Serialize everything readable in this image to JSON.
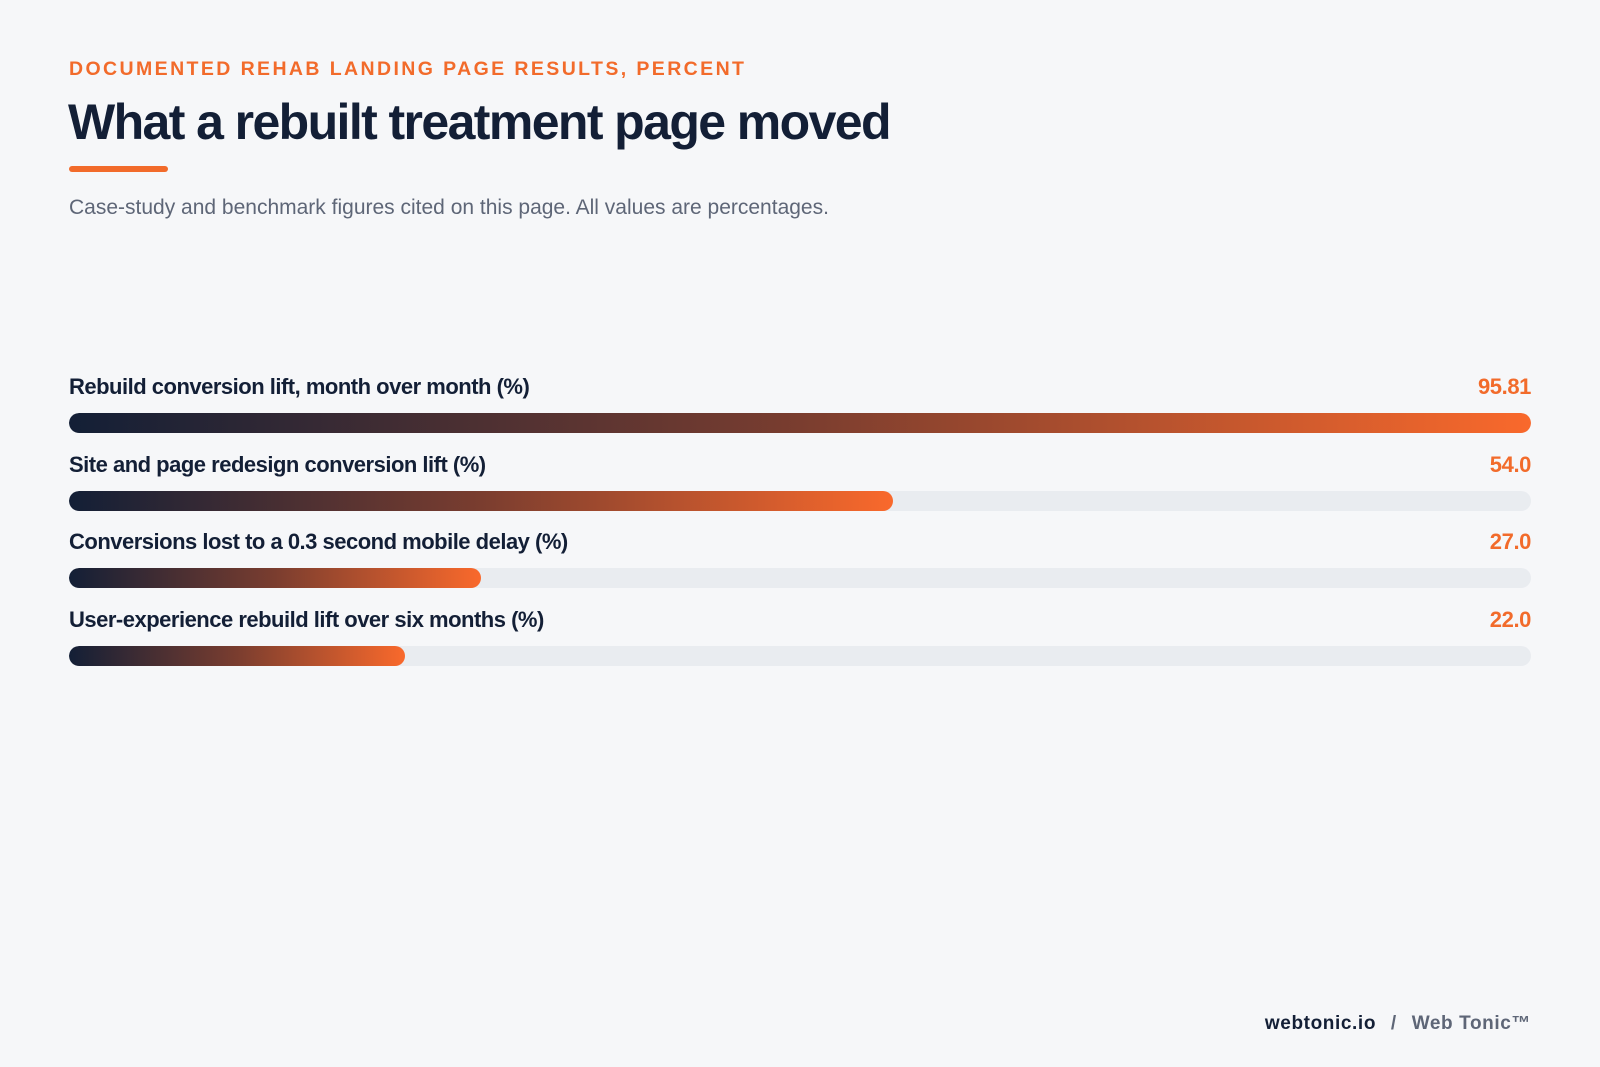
{
  "header": {
    "eyebrow": "DOCUMENTED REHAB LANDING PAGE RESULTS, PERCENT",
    "title": "What a rebuilt treatment page moved",
    "subtitle": "Case-study and benchmark figures cited on this page. All values are percentages."
  },
  "footer": {
    "domain": "webtonic.io",
    "separator": "/",
    "brand": "Web Tonic™"
  },
  "colors": {
    "accent": "#f26b2b",
    "navy": "#131f36",
    "muted": "#5e6677",
    "track": "#e9ecf0",
    "background": "#f6f7f9"
  },
  "chart_data": {
    "type": "bar",
    "orientation": "horizontal",
    "categories": [
      "Rebuild conversion lift, month over month (%)",
      "Site and page redesign conversion lift (%)",
      "Conversions lost to a 0.3 second mobile delay (%)",
      "User-experience rebuild lift over six months (%)"
    ],
    "values": [
      95.81,
      54.0,
      27.0,
      22.0
    ],
    "value_labels": [
      "95.81",
      "54.0",
      "27.0",
      "22.0"
    ],
    "xlim": [
      0,
      95.81
    ],
    "grid": false,
    "legend": "none"
  }
}
